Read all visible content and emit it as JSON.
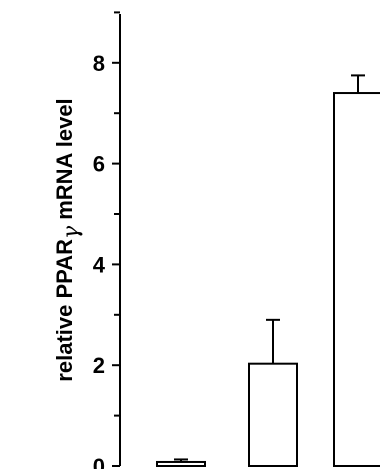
{
  "chart_data": {
    "type": "bar",
    "title": "",
    "xlabel": "",
    "ylabel_prefix": "relative PPAR",
    "ylabel_symbol": "γ",
    "ylabel_suffix": " mRNA level",
    "ylim": [
      0,
      9
    ],
    "yticks_major": [
      0,
      2,
      4,
      6,
      8
    ],
    "yticks_minor": [
      1,
      3,
      5,
      7,
      9
    ],
    "categories": [
      "",
      "",
      ""
    ],
    "values": [
      0.08,
      2.03,
      7.4
    ],
    "errors": [
      0.05,
      0.87,
      0.35
    ],
    "bar_fill": "#ffffff",
    "bar_stroke": "#000000"
  }
}
